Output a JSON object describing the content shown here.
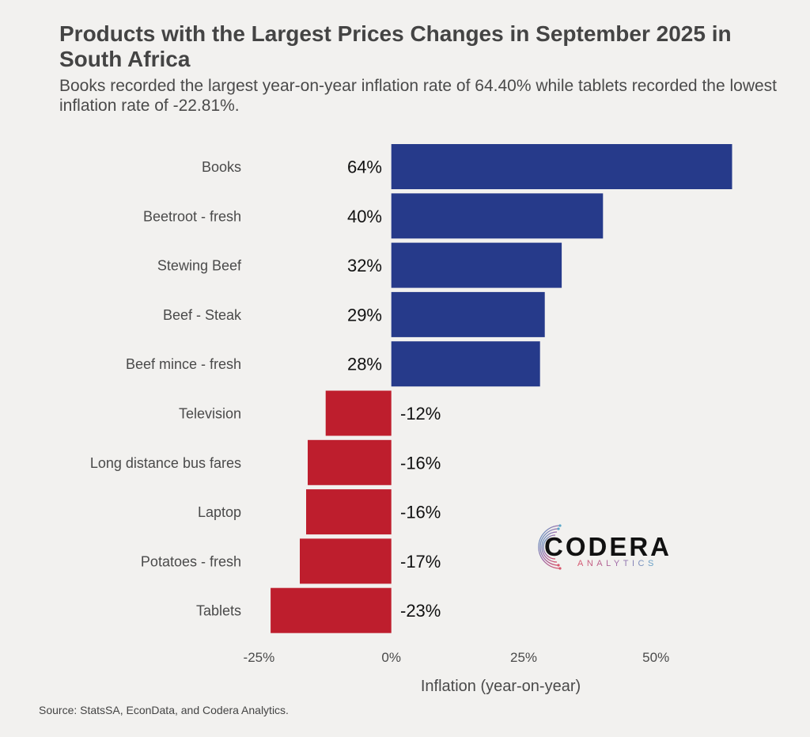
{
  "header": {
    "title": "Products with the Largest Prices Changes in September 2025 in South Africa",
    "subtitle": "Books recorded the largest year-on-year inflation rate of 64.40% while tablets recorded the lowest inflation rate of -22.81%."
  },
  "footer": {
    "source": "Source: StatsSA, EconData, and Codera Analytics."
  },
  "logo": {
    "name": "CODERA",
    "tagline": "ANALYTICS"
  },
  "colors": {
    "positive": "#263a8a",
    "negative": "#be1e2d",
    "background": "#f2f1ef"
  },
  "chart_data": {
    "type": "bar",
    "orientation": "horizontal",
    "title": "Products with the Largest Prices Changes in September 2025 in South Africa",
    "subtitle": "Books recorded the largest year-on-year inflation rate of 64.40% while tablets recorded the lowest inflation rate of -22.81%.",
    "xlabel": "Inflation (year-on-year)",
    "ylabel": "",
    "categories": [
      "Books",
      "Beetroot - fresh",
      "Stewing Beef",
      "Beef - Steak",
      "Beef mince - fresh",
      "Television",
      "Long distance bus fares",
      "Laptop",
      "Potatoes - fresh",
      "Tablets"
    ],
    "values": [
      64.4,
      40.0,
      32.2,
      29.0,
      28.1,
      -12.4,
      -15.8,
      -16.1,
      -17.3,
      -22.81
    ],
    "data_labels": [
      "64%",
      "40%",
      "32%",
      "29%",
      "28%",
      "-12%",
      "-16%",
      "-16%",
      "-17%",
      "-23%"
    ],
    "x_ticks": [
      -25,
      0,
      25,
      50
    ],
    "x_tick_labels": [
      "-25%",
      "0%",
      "25%",
      "50%"
    ],
    "xlim": [
      -22.81,
      64.4
    ],
    "grid": false,
    "legend": "none",
    "source": "Source: StatsSA, EconData, and Codera Analytics."
  }
}
